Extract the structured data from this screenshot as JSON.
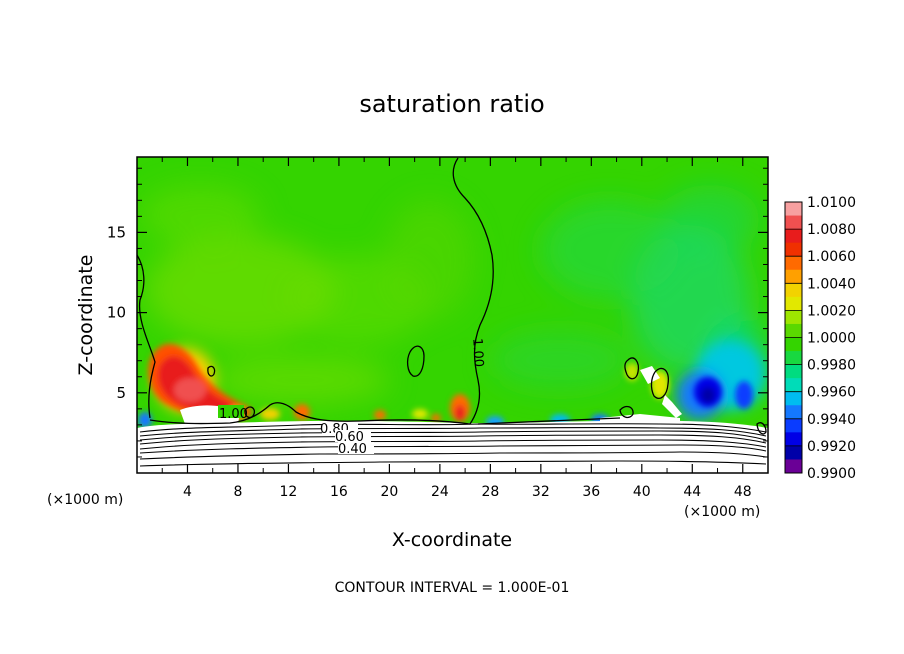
{
  "chart_data": {
    "type": "heatmap",
    "title": "saturation ratio",
    "xlabel": "X-coordinate",
    "ylabel": "Z-coordinate",
    "x_unit": "(×1000 m)",
    "xlim": [
      0,
      50
    ],
    "ylim": [
      0,
      19.7
    ],
    "x_ticks": [
      4,
      8,
      12,
      16,
      20,
      24,
      28,
      32,
      36,
      40,
      44,
      48
    ],
    "y_ticks": [
      5,
      10,
      15
    ],
    "colorbar": {
      "labels": [
        "1.0100",
        "1.0080",
        "1.0060",
        "1.0040",
        "1.0020",
        "1.0000",
        "0.9980",
        "0.9960",
        "0.9940",
        "0.9920",
        "0.9900"
      ],
      "colors": [
        "#fe0000",
        "#ff5a00",
        "#ffa000",
        "#ffd200",
        "#d8f000",
        "#3cd200",
        "#16d84c",
        "#00dca8",
        "#14a0ff",
        "#0000ff",
        "#0000a8",
        "#7000a0"
      ],
      "bands": [
        {
          "from": 1.009,
          "to": 1.01,
          "color": "#f7a0a0"
        },
        {
          "from": 1.008,
          "to": 1.009,
          "color": "#f05050"
        },
        {
          "from": 1.007,
          "to": 1.008,
          "color": "#e81c1c"
        },
        {
          "from": 1.006,
          "to": 1.007,
          "color": "#f03000"
        },
        {
          "from": 1.005,
          "to": 1.006,
          "color": "#ff6a00"
        },
        {
          "from": 1.004,
          "to": 1.005,
          "color": "#ffa000"
        },
        {
          "from": 1.003,
          "to": 1.004,
          "color": "#f2d200"
        },
        {
          "from": 1.002,
          "to": 1.003,
          "color": "#e2e800"
        },
        {
          "from": 1.001,
          "to": 1.002,
          "color": "#9ee600"
        },
        {
          "from": 1.0,
          "to": 1.001,
          "color": "#5ad800"
        },
        {
          "from": 0.999,
          "to": 1.0,
          "color": "#34d400"
        },
        {
          "from": 0.998,
          "to": 0.999,
          "color": "#18d840"
        },
        {
          "from": 0.997,
          "to": 0.998,
          "color": "#00dc80"
        },
        {
          "from": 0.996,
          "to": 0.997,
          "color": "#00dcb8"
        },
        {
          "from": 0.995,
          "to": 0.996,
          "color": "#00bcf0"
        },
        {
          "from": 0.994,
          "to": 0.995,
          "color": "#1478ff"
        },
        {
          "from": 0.993,
          "to": 0.994,
          "color": "#0a3cff"
        },
        {
          "from": 0.992,
          "to": 0.993,
          "color": "#0000e6"
        },
        {
          "from": 0.991,
          "to": 0.992,
          "color": "#0000a8"
        },
        {
          "from": 0.99,
          "to": 0.991,
          "color": "#6a0096"
        }
      ]
    },
    "contour_labels": [
      "1.00",
      "1.00",
      "0.80",
      "0.60",
      "0.40"
    ],
    "contour_interval_text": "CONTOUR INTERVAL = 1.000E-01",
    "background_value": 0.9985,
    "features": [
      {
        "x": 5.5,
        "z": 4.7,
        "value": 1.008,
        "note": "red maximum near x=5"
      },
      {
        "x": 25.8,
        "z": 3.9,
        "value": 1.006
      },
      {
        "x": 13.5,
        "z": 3.6,
        "value": 1.005
      },
      {
        "x": 41.0,
        "z": 5.5,
        "value": 1.003
      },
      {
        "x": 44.5,
        "z": 4.8,
        "value": 0.992,
        "note": "blue minimum"
      }
    ]
  }
}
